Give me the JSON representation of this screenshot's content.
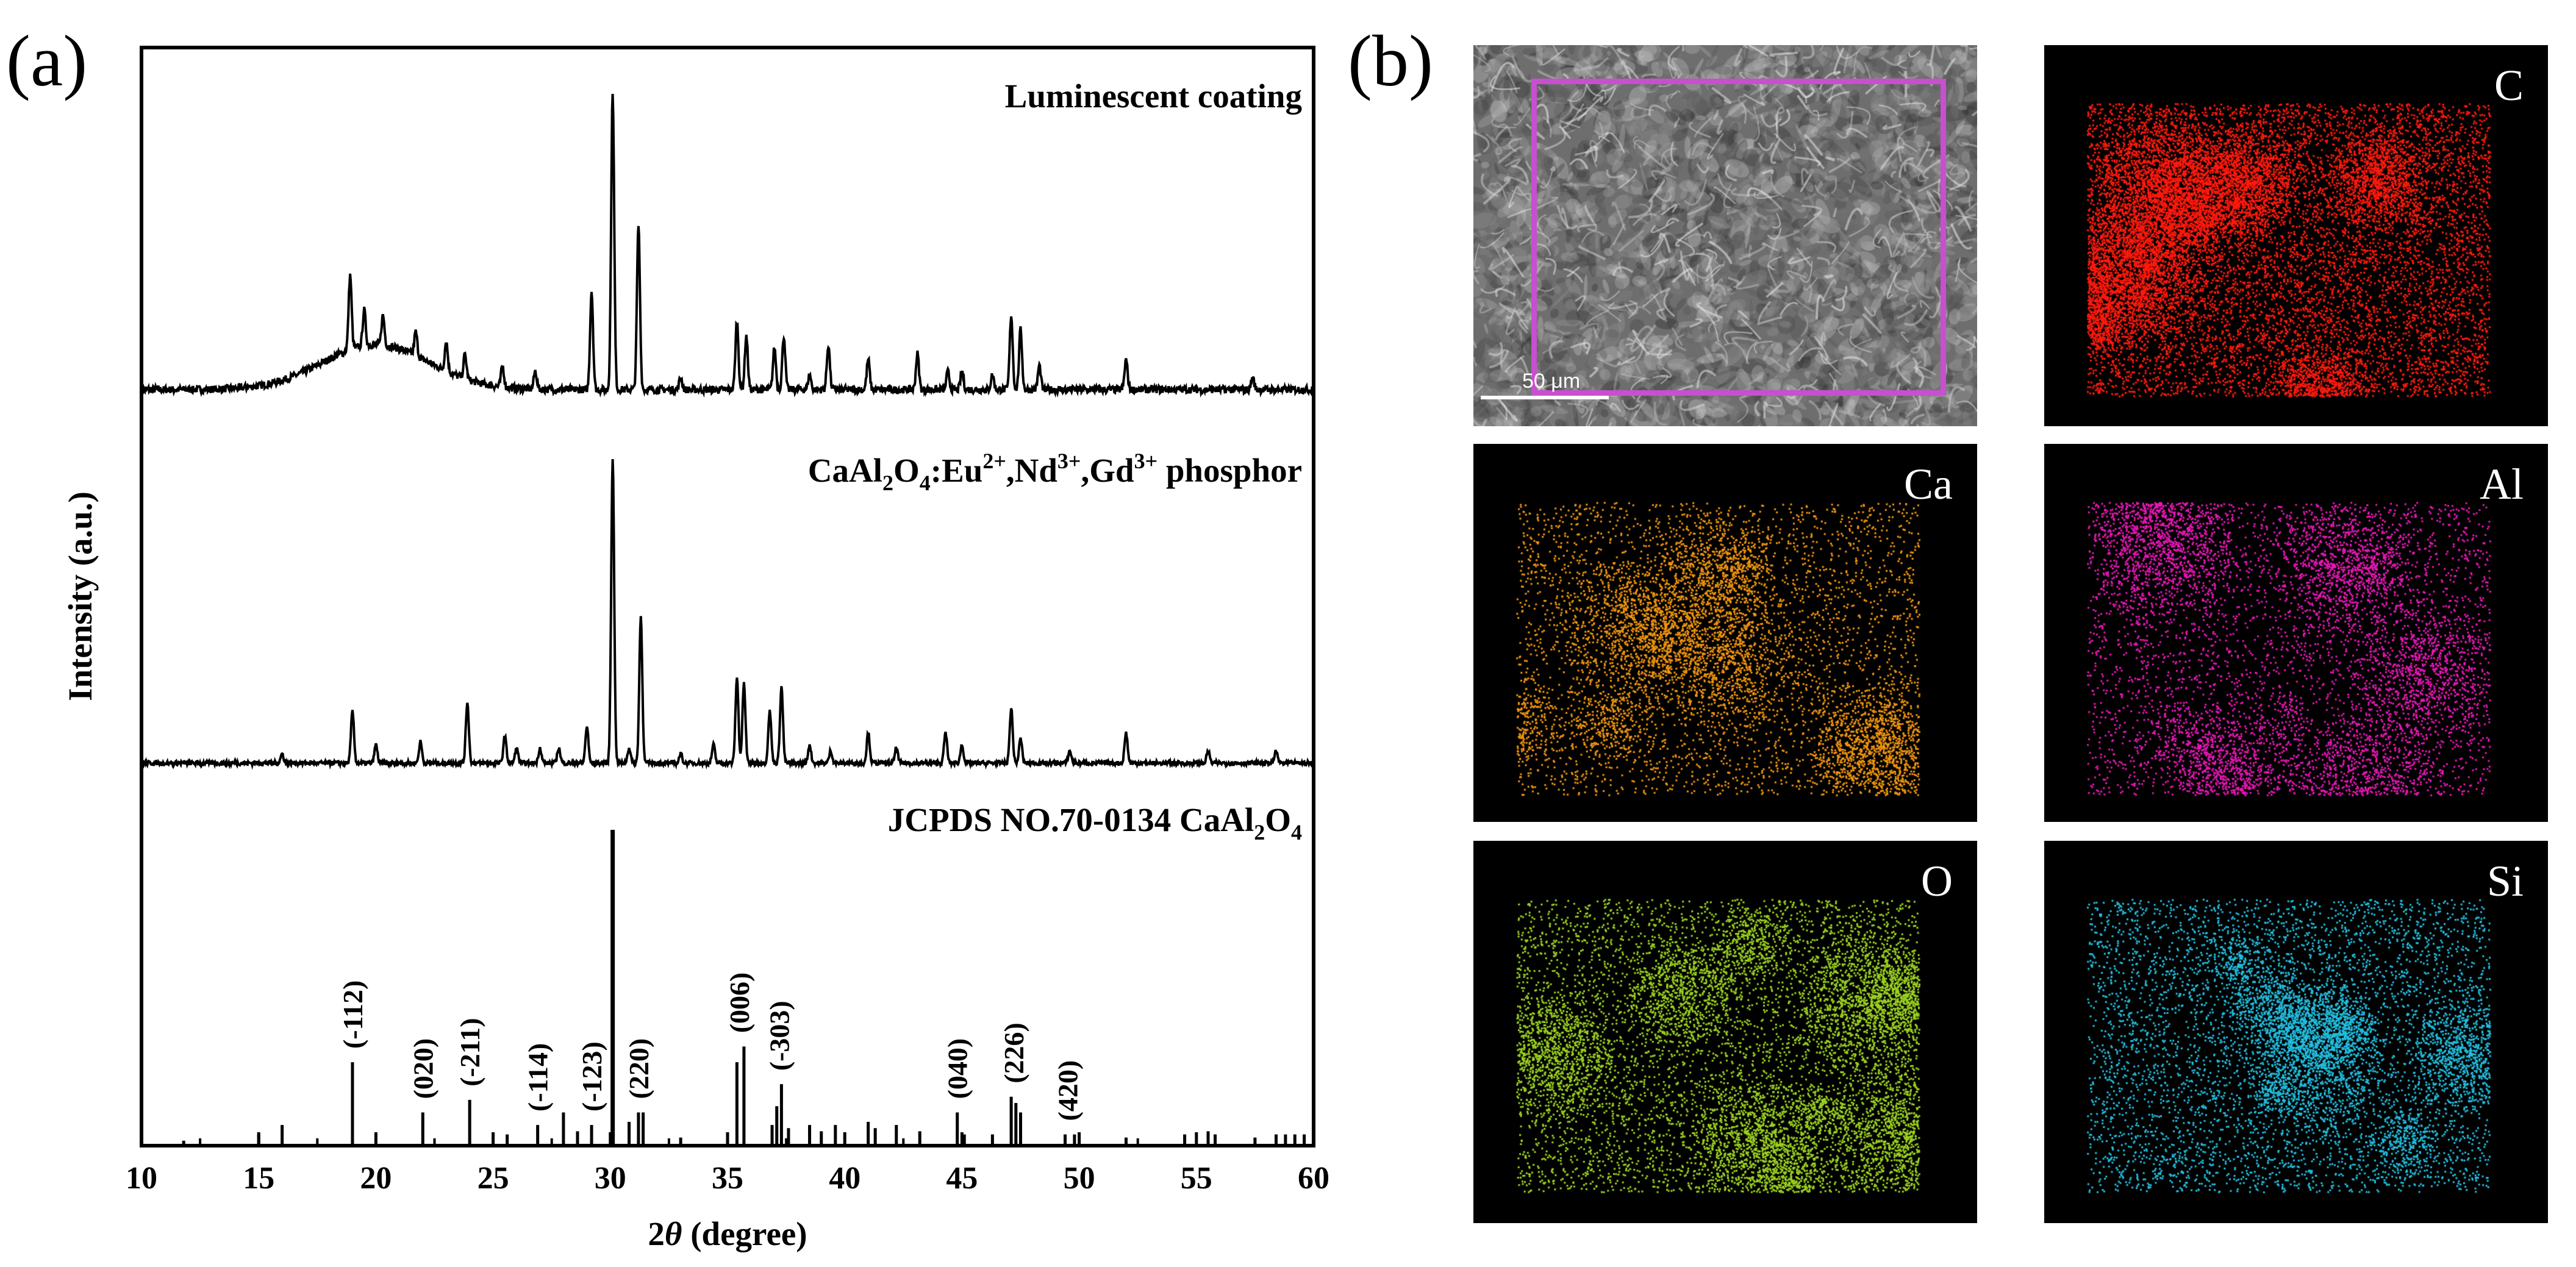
{
  "panel_a_label": "(a)",
  "panel_b_label": "(b)",
  "chart_data": {
    "type": "line",
    "xlabel_prefix": "2",
    "xlabel_symbol": "θ",
    "xlabel_suffix": " (degree)",
    "ylabel": "Intensity (a.u.)",
    "xlim": [
      10,
      60
    ],
    "x_ticks": [
      10,
      15,
      20,
      25,
      30,
      35,
      40,
      45,
      50,
      55,
      60
    ],
    "grid": false,
    "series": [
      {
        "name": "Luminescent coating",
        "peaks": [
          [
            18.9,
            0.25
          ],
          [
            19.5,
            0.12
          ],
          [
            20.3,
            0.1
          ],
          [
            21.7,
            0.08
          ],
          [
            23.0,
            0.1
          ],
          [
            23.8,
            0.08
          ],
          [
            25.4,
            0.07
          ],
          [
            26.8,
            0.06
          ],
          [
            29.2,
            0.33
          ],
          [
            30.1,
            1.0
          ],
          [
            31.2,
            0.55
          ],
          [
            33.0,
            0.04
          ],
          [
            35.4,
            0.23
          ],
          [
            35.8,
            0.18
          ],
          [
            37.0,
            0.14
          ],
          [
            37.4,
            0.18
          ],
          [
            38.5,
            0.05
          ],
          [
            39.3,
            0.15
          ],
          [
            41.0,
            0.1
          ],
          [
            43.1,
            0.12
          ],
          [
            44.4,
            0.06
          ],
          [
            45.0,
            0.06
          ],
          [
            46.3,
            0.05
          ],
          [
            47.1,
            0.25
          ],
          [
            47.5,
            0.2
          ],
          [
            48.3,
            0.08
          ],
          [
            52.0,
            0.1
          ],
          [
            57.4,
            0.04
          ]
        ],
        "background_hump": {
          "center": 20.0,
          "width": 3.2,
          "height": 0.15
        }
      },
      {
        "name": "CaAl2O4:Eu2+,Nd3+,Gd3+ phosphor",
        "peaks": [
          [
            16.0,
            0.03
          ],
          [
            19.0,
            0.17
          ],
          [
            20.0,
            0.06
          ],
          [
            21.9,
            0.07
          ],
          [
            23.9,
            0.2
          ],
          [
            25.5,
            0.09
          ],
          [
            26.0,
            0.05
          ],
          [
            27.0,
            0.05
          ],
          [
            27.8,
            0.05
          ],
          [
            29.0,
            0.12
          ],
          [
            30.1,
            1.0
          ],
          [
            30.8,
            0.05
          ],
          [
            31.3,
            0.48
          ],
          [
            33.0,
            0.03
          ],
          [
            34.4,
            0.06
          ],
          [
            35.4,
            0.28
          ],
          [
            35.7,
            0.26
          ],
          [
            36.8,
            0.17
          ],
          [
            37.3,
            0.25
          ],
          [
            38.5,
            0.06
          ],
          [
            39.4,
            0.04
          ],
          [
            41.0,
            0.1
          ],
          [
            42.2,
            0.05
          ],
          [
            44.3,
            0.1
          ],
          [
            45.0,
            0.06
          ],
          [
            47.1,
            0.18
          ],
          [
            47.5,
            0.08
          ],
          [
            49.6,
            0.04
          ],
          [
            52.0,
            0.1
          ],
          [
            55.5,
            0.04
          ],
          [
            58.4,
            0.04
          ]
        ]
      }
    ],
    "reference": {
      "label_prefix": "JCPDS NO.70-0134 CaAl",
      "label_sub1": "2",
      "label_mid": "O",
      "label_sub2": "4",
      "lines": [
        [
          11.8,
          0.01
        ],
        [
          15.0,
          0.03
        ],
        [
          16.0,
          0.06
        ],
        [
          19.0,
          0.26
        ],
        [
          22.0,
          0.1
        ],
        [
          24.0,
          0.14
        ],
        [
          25.6,
          0.03
        ],
        [
          26.9,
          0.06
        ],
        [
          28.0,
          0.1
        ],
        [
          28.6,
          0.04
        ],
        [
          29.2,
          0.06
        ],
        [
          30.1,
          1.0
        ],
        [
          30.8,
          0.07
        ],
        [
          31.2,
          0.1
        ],
        [
          31.4,
          0.1
        ],
        [
          33.0,
          0.02
        ],
        [
          35.4,
          0.26
        ],
        [
          35.7,
          0.31
        ],
        [
          36.9,
          0.06
        ],
        [
          37.1,
          0.12
        ],
        [
          37.3,
          0.19
        ],
        [
          37.6,
          0.05
        ],
        [
          38.5,
          0.06
        ],
        [
          39.0,
          0.04
        ],
        [
          39.6,
          0.06
        ],
        [
          41.0,
          0.07
        ],
        [
          41.3,
          0.05
        ],
        [
          42.2,
          0.06
        ],
        [
          43.2,
          0.04
        ],
        [
          44.8,
          0.1
        ],
        [
          45.1,
          0.03
        ],
        [
          46.3,
          0.03
        ],
        [
          47.1,
          0.15
        ],
        [
          47.3,
          0.13
        ],
        [
          47.5,
          0.1
        ],
        [
          49.4,
          0.03
        ],
        [
          49.8,
          0.03
        ],
        [
          52.0,
          0.02
        ],
        [
          54.5,
          0.03
        ],
        [
          55.5,
          0.04
        ],
        [
          55.8,
          0.03
        ],
        [
          57.5,
          0.02
        ],
        [
          58.4,
          0.03
        ],
        [
          58.8,
          0.03
        ],
        [
          59.2,
          0.03
        ],
        [
          59.6,
          0.03
        ]
      ],
      "annotations": [
        {
          "x": 19.0,
          "label": "(-112)"
        },
        {
          "x": 22.0,
          "label": "(020)"
        },
        {
          "x": 24.0,
          "label": "(-211)"
        },
        {
          "x": 26.9,
          "label": "(-114)"
        },
        {
          "x": 29.2,
          "label": "(-123)"
        },
        {
          "x": 31.2,
          "label": "(220)"
        },
        {
          "x": 35.5,
          "label": "(006)"
        },
        {
          "x": 37.2,
          "label": "(-303)"
        },
        {
          "x": 44.8,
          "label": "(040)"
        },
        {
          "x": 47.2,
          "label": "(226)"
        },
        {
          "x": 49.5,
          "label": "(420)"
        }
      ]
    }
  },
  "labels": {
    "coating": "Luminescent coating",
    "phosphor_base": "CaAl",
    "phosphor_sub1": "2",
    "phosphor_o": "O",
    "phosphor_sub2": "4",
    "phosphor_eu": ":Eu",
    "phosphor_sup1": "2+",
    "phosphor_nd": ",Nd",
    "phosphor_sup2": "3+",
    "phosphor_gd": ",Gd",
    "phosphor_sup3": "3+",
    "phosphor_tail": " phosphor"
  },
  "sem": {
    "scale_label": "50 μm"
  },
  "maps": [
    {
      "id": "C",
      "label": "C",
      "color": "#ff1a0e"
    },
    {
      "id": "Ca",
      "label": "Ca",
      "color": "#f0960f"
    },
    {
      "id": "Al",
      "label": "Al",
      "color": "#e817b7"
    },
    {
      "id": "O",
      "label": "O",
      "color": "#9bd221"
    },
    {
      "id": "Si",
      "label": "Si",
      "color": "#22bfe0"
    }
  ]
}
